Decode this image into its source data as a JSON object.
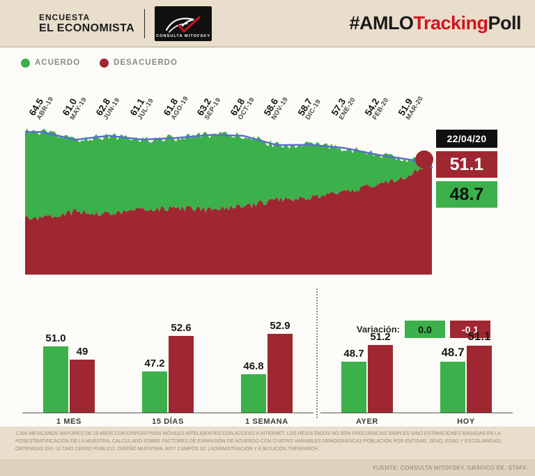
{
  "colors": {
    "green": "#3cb04a",
    "red": "#9e2731",
    "red_bright": "#d0151c",
    "blue": "#5a6fc8",
    "beige": "#e8decb"
  },
  "header": {
    "survey_label": "ENCUESTA",
    "newspaper": "EL ECONOMISTA",
    "logo_text": "CONSULTA MITOFSKY",
    "hashtag": {
      "amlo": "#AMLO",
      "tracking": "Tracking",
      "poll": "Poll"
    }
  },
  "legend": {
    "acuerdo": "ACUERDO",
    "desacuerdo": "DESACUERDO"
  },
  "chart_data": [
    {
      "type": "area",
      "categories": [
        "ABR-19",
        "MAY-19",
        "JUN-19",
        "JUL-19",
        "AGO-19",
        "SEP-19",
        "OCT-19",
        "NOV-19",
        "DIC-19",
        "ENE-20",
        "FEB-20",
        "MAR-20"
      ],
      "series": [
        {
          "name": "ACUERDO",
          "color": "#3cb04a",
          "values": [
            64.5,
            61.0,
            62.8,
            61.1,
            61.8,
            63.2,
            62.8,
            58.6,
            58.7,
            57.3,
            54.2,
            51.9
          ]
        },
        {
          "name": "DESACUERDO",
          "color": "#9e2731",
          "estimated": true,
          "values": [
            26.0,
            28.5,
            27.5,
            29.5,
            30.0,
            29.5,
            30.5,
            34.0,
            35.0,
            37.0,
            41.0,
            45.0
          ]
        }
      ],
      "ylim": [
        0,
        70
      ],
      "trend_line_color": "#5a6fc8",
      "current": {
        "date": "22/04/20",
        "acuerdo": 48.7,
        "desacuerdo": 51.1,
        "acuerdo_label": "48.7",
        "desacuerdo_label": "51.1"
      }
    },
    {
      "type": "bar",
      "variation_label": "Variación:",
      "variation": {
        "acuerdo": "0.0",
        "desacuerdo": "-0.1"
      },
      "groups": [
        {
          "label": "1 MES",
          "acuerdo": 51.0,
          "desacuerdo": 49.0,
          "acuerdo_label": "51.0",
          "desacuerdo_label": "49",
          "emphasis": false
        },
        {
          "label": "15 DÍAS",
          "acuerdo": 47.2,
          "desacuerdo": 52.6,
          "acuerdo_label": "47.2",
          "desacuerdo_label": "52.6",
          "emphasis": false
        },
        {
          "label": "1 SEMANA",
          "acuerdo": 46.8,
          "desacuerdo": 52.9,
          "acuerdo_label": "46.8",
          "desacuerdo_label": "52.9",
          "emphasis": false
        },
        {
          "label": "AYER",
          "acuerdo": 48.7,
          "desacuerdo": 51.2,
          "acuerdo_label": "48.7",
          "desacuerdo_label": "51.2",
          "emphasis": false
        },
        {
          "label": "HOY",
          "acuerdo": 48.7,
          "desacuerdo": 51.1,
          "acuerdo_label": "48.7",
          "desacuerdo_label": "51.1",
          "emphasis": true
        }
      ]
    }
  ],
  "footer": {
    "disclaimer": "1,000 MEXICANOS MAYORES DE 18 AÑOS CON DISPOSITIVOS MÓVILES INTELIGENTES CON ACCESO A INTERNET. LOS RESULTADOS NO SON FRECUENCIAS SIMPLES SINO ESTIMACIONES BASADAS EN LA POSESTRATIFICACIÓN DE LA MUESTRA, CALCULADO SOBRE FACTORES DE EXPANSIÓN DE ACUERDO CON CUATRO VARIABLES DEMOGRÁFICAS POBLACIÓN POR ENTIDAD, SEXO, EDAD Y ESCOLARIDAD) OBTENIDAS DEL ÚLTIMO CENSO PÚBLICO. DISEÑO MUESTRAL ROY CAMPOS SC | ADMINISTRACIÓN Y EJECUCIÓN TRESEARCH.",
    "source": "FUENTE: CONSULTA MITOFSKY. GRÁFICO EE. STAFF."
  }
}
